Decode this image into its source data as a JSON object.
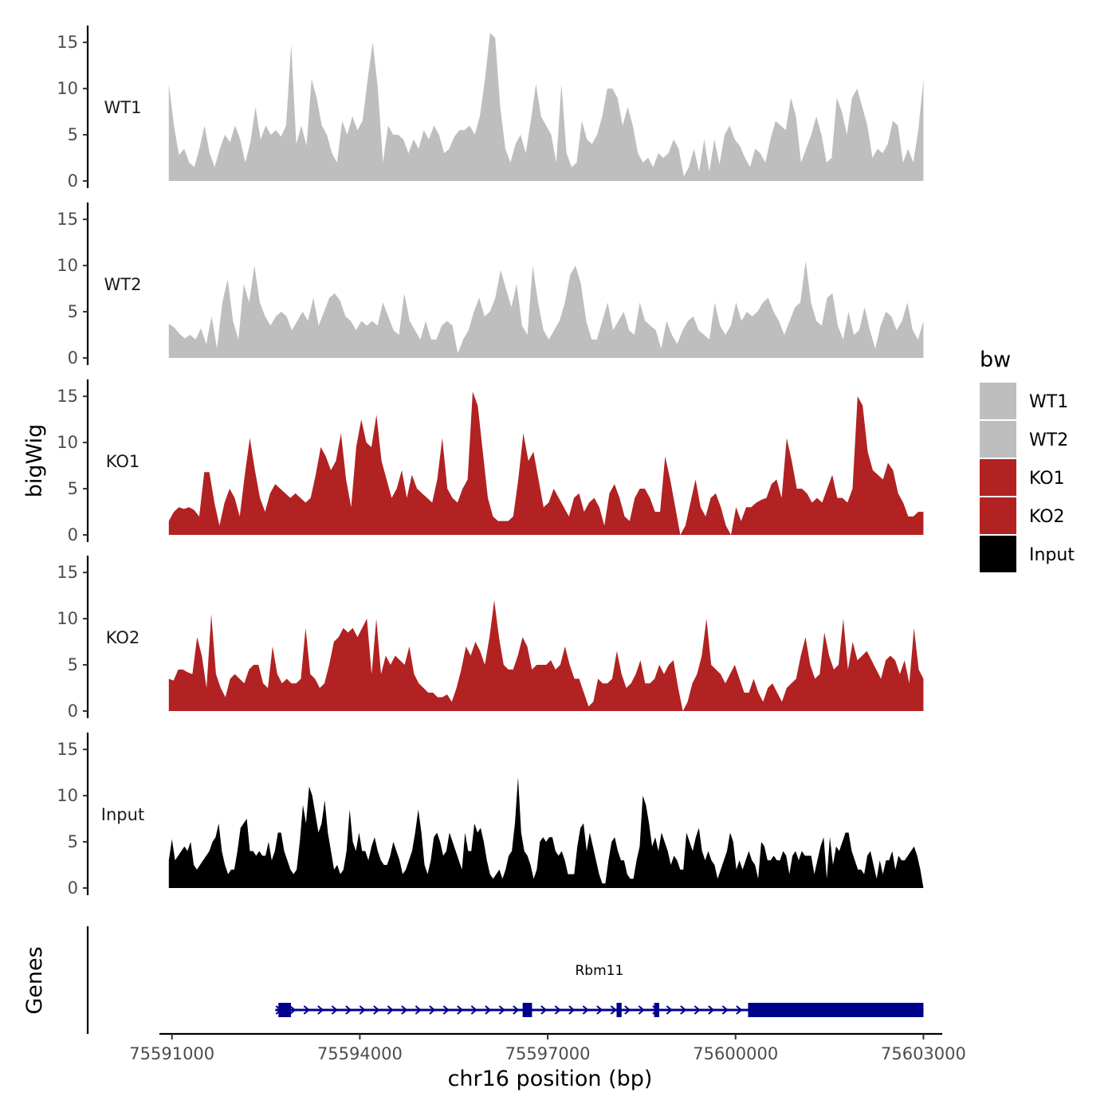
{
  "chart_data": {
    "type": "area",
    "title": "",
    "xlabel": "chr16 position (bp)",
    "ylabel": "bigWig",
    "genes_panel_label": "Genes",
    "xlim": [
      75590800,
      75603300
    ],
    "data_range": [
      75590950,
      75603000
    ],
    "x_ticks": [
      75591000,
      75594000,
      75597000,
      75600000,
      75603000
    ],
    "x_tick_labels": [
      "75591000",
      "75594000",
      "75597000",
      "75600000",
      "75603000"
    ],
    "ylim": [
      0,
      17
    ],
    "y_ticks": [
      0,
      5,
      10,
      15
    ],
    "y_tick_labels": [
      "0",
      "5",
      "10",
      "15"
    ],
    "legend": {
      "title": "bw",
      "position": "right",
      "entries": [
        {
          "label": "WT1",
          "color": "#BEBEBE"
        },
        {
          "label": "WT2",
          "color": "#BEBEBE"
        },
        {
          "label": "KO1",
          "color": "#B22222"
        },
        {
          "label": "KO2",
          "color": "#B22222"
        },
        {
          "label": "Input",
          "color": "#000000"
        }
      ]
    },
    "series": [
      {
        "name": "WT1",
        "color": "#BEBEBE",
        "values": [
          10.5,
          6,
          2.8,
          3.5,
          2,
          1.5,
          3.5,
          6,
          3,
          1.5,
          3.5,
          5,
          4.2,
          6,
          4.5,
          2,
          4.2,
          8,
          4.5,
          6,
          5,
          5.5,
          4.8,
          6,
          14.8,
          4,
          6,
          3.8,
          11,
          9,
          6,
          5,
          3,
          2,
          6.5,
          5,
          7,
          5.5,
          6.5,
          11,
          15,
          10,
          2,
          6,
          5,
          5,
          4.5,
          3,
          4.5,
          3.5,
          5.5,
          4.5,
          6,
          5,
          3,
          3.5,
          4.8,
          5.5,
          5.5,
          6,
          5,
          7,
          11,
          16,
          15.5,
          8,
          3.5,
          2,
          4,
          5,
          3,
          6.5,
          10.5,
          7,
          6,
          5,
          2,
          10.5,
          3,
          1.5,
          2,
          6.5,
          4.5,
          4,
          5,
          7,
          10,
          10,
          9,
          6,
          8,
          6,
          3,
          2,
          2.5,
          1.5,
          3,
          2.5,
          3,
          4.5,
          3.5,
          0.5,
          1.5,
          3.5,
          1,
          4.5,
          1,
          4.5,
          1.8,
          5,
          6,
          4.5,
          3.8,
          2.5,
          1.5,
          3.5,
          3,
          2,
          4.5,
          6.5,
          6,
          5.5,
          9,
          7,
          2,
          3.5,
          5,
          7,
          5,
          2,
          2.5,
          9,
          7.5,
          5,
          9,
          10,
          8,
          6,
          2.5,
          3.5,
          3,
          4,
          6.5,
          6,
          2,
          3.5,
          2,
          5.5,
          11
        ]
      },
      {
        "name": "WT2",
        "color": "#BEBEBE",
        "values": [
          3.7,
          3.3,
          2.6,
          2.1,
          2.5,
          2,
          3.2,
          1.5,
          4.5,
          1,
          6,
          8.5,
          4,
          2,
          8,
          6,
          10,
          6,
          4.5,
          3.5,
          4.5,
          5,
          4.5,
          3,
          4,
          5,
          4,
          6.5,
          3.5,
          5,
          6.5,
          7,
          6.2,
          4.5,
          4,
          3,
          4,
          3.5,
          4,
          3.5,
          6,
          4.5,
          3,
          2.5,
          7,
          4,
          3,
          2,
          4,
          2,
          2,
          3.5,
          4,
          3.5,
          0.5,
          2,
          3,
          5,
          6.5,
          4.5,
          5,
          6.5,
          9.5,
          7.5,
          5.5,
          8,
          3.5,
          2.5,
          10,
          6,
          3,
          2,
          3,
          4,
          6,
          9,
          10,
          8,
          4,
          2,
          2,
          4,
          6,
          3,
          4,
          5,
          3,
          2.5,
          6,
          4,
          3.5,
          3,
          1,
          4,
          2.5,
          1.5,
          3,
          4,
          4.5,
          3,
          2.5,
          2,
          6,
          3.5,
          2.5,
          3.5,
          6,
          4,
          5,
          4.5,
          5,
          6,
          6.5,
          5,
          4,
          2.5,
          4,
          5.5,
          6,
          10.5,
          6,
          4,
          3.5,
          6.5,
          7,
          3.5,
          2,
          5,
          2.5,
          3,
          5.5,
          3,
          1,
          3.5,
          5,
          4.5,
          3,
          4,
          6,
          3,
          2,
          4
        ]
      },
      {
        "name": "KO1",
        "color": "#B22222",
        "values": [
          1.5,
          2.5,
          3,
          2.8,
          3,
          2.7,
          2,
          6.8,
          6.8,
          3.5,
          1,
          3.5,
          5,
          4,
          2,
          6.5,
          10.5,
          7,
          4,
          2.5,
          4.5,
          5.5,
          5,
          4.5,
          4,
          4.5,
          4,
          3.5,
          4,
          6.5,
          9.5,
          8.5,
          7,
          8,
          11,
          6,
          3,
          9.5,
          12.5,
          10,
          9.5,
          13,
          8,
          6,
          4,
          5,
          7,
          4,
          6.5,
          5,
          4.5,
          4,
          3.5,
          6,
          10.5,
          5,
          4,
          3.5,
          5,
          6,
          15.5,
          14,
          9,
          4,
          2,
          1.5,
          1.5,
          1.5,
          2,
          6,
          11,
          8,
          9,
          6,
          3,
          3.5,
          5,
          4,
          3,
          2,
          4,
          4.5,
          2.5,
          3.5,
          4,
          3,
          1,
          4.5,
          5.5,
          4,
          2,
          1.5,
          4,
          5,
          5,
          4,
          2.5,
          2.5,
          8.5,
          6,
          3,
          0,
          1,
          3.5,
          6,
          3,
          2,
          4,
          4.5,
          3,
          1,
          0,
          3,
          1.5,
          3,
          3,
          3.5,
          3.8,
          4,
          5.5,
          6,
          4,
          10.5,
          8,
          5,
          5,
          4.5,
          3.5,
          4,
          3.5,
          5,
          6.5,
          4,
          4,
          3.5,
          5,
          15,
          14,
          9,
          7,
          6.5,
          6,
          7.8,
          7,
          4.5,
          3.5,
          2,
          2,
          2.5,
          2.5
        ]
      },
      {
        "name": "KO2",
        "color": "#B22222",
        "values": [
          3.5,
          3.3,
          4.5,
          4.5,
          4.2,
          4,
          8,
          6,
          2.5,
          10.5,
          4,
          2.5,
          1.5,
          3.5,
          4,
          3.5,
          3,
          4.5,
          5,
          5,
          3,
          2.5,
          7,
          4,
          3,
          3.5,
          3,
          3,
          3.5,
          9,
          4,
          3.5,
          2.5,
          3,
          5,
          7.5,
          8,
          9,
          8.5,
          9,
          8,
          9,
          10,
          4,
          10,
          4,
          6,
          5,
          6,
          5.5,
          5,
          7,
          4,
          3,
          2.5,
          2,
          2,
          1.5,
          1.5,
          1.8,
          1,
          2.5,
          4.5,
          7,
          6,
          7.5,
          6.5,
          5,
          8,
          12,
          8,
          5,
          4.5,
          4.5,
          6,
          8,
          7,
          4.5,
          5,
          5,
          5,
          5.5,
          4.5,
          5,
          7,
          5,
          3.5,
          3.5,
          2,
          0.5,
          1,
          3.5,
          3,
          3,
          3.5,
          6.5,
          4,
          2.5,
          3,
          4,
          5.5,
          3,
          3,
          3.5,
          5,
          4,
          5,
          5.5,
          2.5,
          0,
          1,
          3,
          4,
          6,
          10,
          5,
          4.5,
          4,
          3,
          4,
          5,
          3.5,
          2,
          2,
          3.5,
          2,
          1,
          2.5,
          3,
          2,
          1,
          2.5,
          3,
          3.5,
          6,
          8,
          5,
          3.5,
          4,
          8.5,
          6,
          4.5,
          5,
          10,
          4.5,
          7.5,
          5.5,
          6,
          6.5,
          5.5,
          4.5,
          3.5,
          5.5,
          6,
          5.5,
          4,
          5.5,
          3,
          9,
          4.5,
          3.5
        ]
      },
      {
        "name": "Input",
        "color": "#000000",
        "values": [
          3,
          5.3,
          3,
          3.5,
          4,
          4.5,
          4,
          5,
          2.5,
          2,
          2.5,
          3,
          3.5,
          4,
          5,
          5.5,
          7,
          4,
          2.5,
          1.5,
          2,
          2,
          4,
          6.5,
          7,
          7.5,
          4,
          4,
          3.5,
          4,
          3.5,
          3.5,
          5,
          3,
          4,
          6,
          6,
          4,
          3,
          2,
          1.5,
          2,
          5,
          9,
          7,
          11,
          10,
          8,
          6,
          7,
          9.5,
          6,
          4,
          2,
          2.5,
          1.5,
          2,
          4,
          8.5,
          5,
          4,
          6,
          4,
          4,
          3,
          4.5,
          5.5,
          4,
          3,
          2.5,
          2.5,
          3.5,
          5,
          4,
          3,
          1.5,
          2,
          3,
          4,
          6,
          8.5,
          6,
          2.5,
          1.5,
          3,
          5.5,
          6,
          5,
          3.5,
          4,
          6,
          5,
          4,
          3,
          2,
          6,
          4,
          4,
          7,
          6,
          6.5,
          5,
          3,
          1.5,
          1,
          1.5,
          2,
          1,
          2,
          3.5,
          4,
          7,
          12,
          6,
          4,
          3.5,
          2.5,
          1,
          2,
          5,
          5.5,
          5,
          5.5,
          5.5,
          4,
          3.5,
          4,
          3,
          1.5,
          1.5,
          1.5,
          4.5,
          6.5,
          7,
          4,
          6,
          4.5,
          3,
          1.5,
          0.5,
          0.5,
          3,
          5,
          5.5,
          4,
          3,
          3,
          1.5,
          1,
          1,
          3,
          4.5,
          10,
          9,
          7,
          4.5,
          5.5,
          4,
          6,
          5,
          4,
          2.5,
          3.5,
          3,
          2,
          2,
          6,
          5,
          4,
          5.5,
          6.5,
          4,
          3,
          4,
          3,
          2.5,
          1,
          2,
          3,
          4,
          6,
          5,
          2,
          3,
          2,
          3,
          4,
          3,
          2.5,
          1,
          5,
          4.5,
          3,
          3,
          3.5,
          3,
          3,
          4,
          3.5,
          1.5,
          3.5,
          4,
          3,
          4,
          3.5,
          3.5,
          3.5,
          1.5,
          3,
          4.5,
          5.5,
          1,
          5.5,
          2.5,
          4.5,
          4,
          5,
          6,
          6,
          4,
          3,
          2,
          2,
          1.5,
          3.5,
          4,
          2.5,
          1,
          3,
          1.5,
          3,
          3,
          4,
          2,
          3.5,
          3,
          3,
          3.5,
          4,
          4.5,
          3.5,
          2,
          0
        ]
      }
    ],
    "genes": [
      {
        "name": "Rbm11",
        "strand": "+",
        "start": 75592650,
        "end": 75603000,
        "exons": [
          [
            75592700,
            75592900
          ],
          [
            75596600,
            75596750
          ],
          [
            75598100,
            75598180
          ],
          [
            75598700,
            75598780
          ],
          [
            75600200,
            75603000
          ]
        ]
      }
    ]
  }
}
